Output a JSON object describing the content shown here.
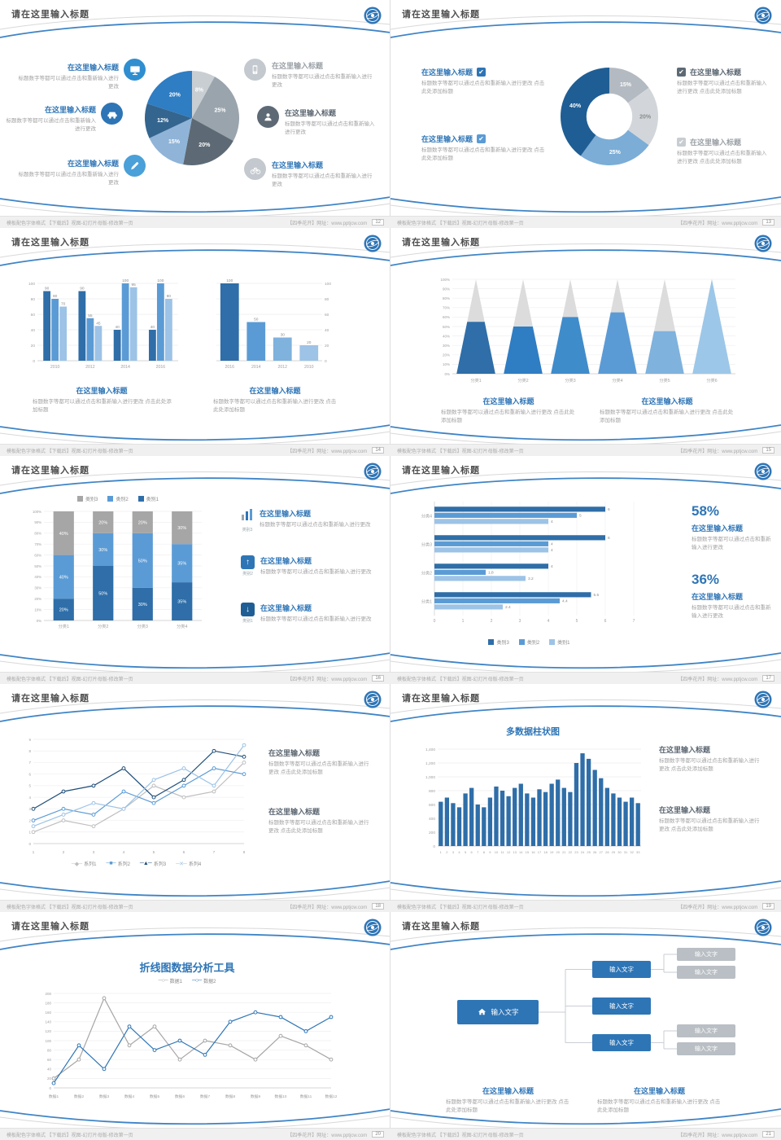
{
  "page": {
    "title": "请在这里输入标题",
    "footer_left": "模板配色字体格式 【下载后】视图-幻灯片母版-修改第一页",
    "footer_right": "【四季花开】网址：www.pptjcw.com"
  },
  "text": {
    "item_title": "在这里输入标题",
    "body": "标题数字等都可以通过点击和重新输入进行更改",
    "body_long": "标题数字等都可以通过点击和重新输入进行更改 点击此处添加标题"
  },
  "slides": [
    {
      "page_no": "12",
      "chart_data": {
        "type": "pie",
        "slices": [
          {
            "label": "8%",
            "value": 8,
            "color": "#c9ced3"
          },
          {
            "label": "25%",
            "value": 25,
            "color": "#9aa4ac"
          },
          {
            "label": "20%",
            "value": 20,
            "color": "#5d6a75"
          },
          {
            "label": "15%",
            "value": 15,
            "color": "#8fb4d8"
          },
          {
            "label": "12%",
            "value": 12,
            "color": "#33658f"
          },
          {
            "label": "20%",
            "value": 20,
            "color": "#2f7dc3"
          }
        ]
      }
    },
    {
      "page_no": "13",
      "chart_data": {
        "type": "donut",
        "slices": [
          {
            "label": "15%",
            "value": 15,
            "color": "#b3bac1"
          },
          {
            "label": "20%",
            "value": 20,
            "color": "#d2d6da",
            "lc": "#8a8a8a"
          },
          {
            "label": "25%",
            "value": 25,
            "color": "#7badd6"
          },
          {
            "label": "40%",
            "value": 40,
            "color": "#1f5e94"
          }
        ]
      }
    },
    {
      "page_no": "14",
      "chart_data": [
        {
          "type": "bar-grouped",
          "categories": [
            "2010",
            "2012",
            "2014",
            "2016"
          ],
          "ylim": [
            0,
            100
          ],
          "ystep": 20,
          "value_labels": true,
          "series": [
            {
              "color": "#2f6ea8",
              "values": [
                90,
                90,
                40,
                40
              ]
            },
            {
              "color": "#5b9bd5",
              "values": [
                80,
                55,
                100,
                100
              ]
            },
            {
              "color": "#9dc3e6",
              "values": [
                70,
                45,
                95,
                80
              ]
            }
          ]
        },
        {
          "type": "bar",
          "categories": [
            "2016",
            "2014",
            "2012",
            "2010"
          ],
          "ylim": [
            0,
            100
          ],
          "ystep": 20,
          "axis_right": true,
          "value_labels": true,
          "values": [
            100,
            50,
            30,
            20
          ],
          "colors": [
            "#2f6ea8",
            "#5b9bd5",
            "#7fb2dd",
            "#9dc3e6"
          ]
        }
      ]
    },
    {
      "page_no": "15",
      "chart_data": {
        "type": "pyramid",
        "categories": [
          "分类1",
          "分类2",
          "分类3",
          "分类4",
          "分类5",
          "分类6"
        ],
        "blue_fractions": [
          0.55,
          0.5,
          0.6,
          0.65,
          0.45,
          1
        ],
        "colors": [
          "#2f6ea8",
          "#2f7dc3",
          "#3f8ccb",
          "#5b9bd5",
          "#7fb2dd",
          "#9cc7e8"
        ],
        "top_color": "#dcdcdc",
        "ylim": [
          0,
          100
        ],
        "ystep": 10
      }
    },
    {
      "page_no": "16",
      "list_icons": [
        "类别3",
        "类别2",
        "类别1"
      ],
      "chart_data": {
        "type": "bar-stacked",
        "categories": [
          "分类1",
          "分类2",
          "分类3",
          "分类4"
        ],
        "ylim": [
          0,
          100
        ],
        "ystep": 10,
        "series": [
          {
            "name": "类别1",
            "color": "#2f6ea8",
            "values": [
              20,
              50,
              30,
              35
            ]
          },
          {
            "name": "类别2",
            "color": "#5b9bd5",
            "values": [
              40,
              30,
              50,
              35
            ]
          },
          {
            "name": "类别3",
            "color": "#a6a6a6",
            "values": [
              40,
              20,
              20,
              30
            ]
          }
        ],
        "legend": [
          {
            "label": "类别3",
            "color": "#a6a6a6"
          },
          {
            "label": "类别2",
            "color": "#5b9bd5"
          },
          {
            "label": "类别1",
            "color": "#2f6ea8"
          }
        ]
      }
    },
    {
      "page_no": "17",
      "stats": [
        {
          "value": "58%"
        },
        {
          "value": "36%"
        }
      ],
      "chart_data": {
        "type": "hbar",
        "categories": [
          "分类1",
          "分类2",
          "分类3",
          "分类4"
        ],
        "xlim": [
          0,
          7
        ],
        "series": [
          {
            "name": "类别3",
            "color": "#2f6ea8",
            "values": [
              5.5,
              4,
              6,
              6
            ]
          },
          {
            "name": "类别2",
            "color": "#5b9bd5",
            "values": [
              4.4,
              1.8,
              4,
              5
            ]
          },
          {
            "name": "类别1",
            "color": "#9dc3e6",
            "values": [
              2.4,
              3.2,
              4,
              4
            ]
          }
        ],
        "legend": [
          {
            "label": "类别3",
            "color": "#2f6ea8"
          },
          {
            "label": "类别2",
            "color": "#5b9bd5"
          },
          {
            "label": "类别1",
            "color": "#9dc3e6"
          }
        ]
      }
    },
    {
      "page_no": "18",
      "chart_data": {
        "type": "line",
        "x": [
          "1",
          "2",
          "3",
          "4",
          "5",
          "6",
          "7",
          "8"
        ],
        "ylim": [
          0,
          9
        ],
        "ystep": 1,
        "markers": true,
        "series": [
          {
            "color": "#bfbfbf",
            "values": [
              1,
              2,
              1.5,
              3,
              5,
              4,
              4.5,
              7
            ]
          },
          {
            "color": "#5b9bd5",
            "values": [
              2,
              3,
              2.5,
              4.5,
              3.5,
              5,
              6.5,
              6
            ]
          },
          {
            "color": "#1f4e79",
            "values": [
              3,
              4.5,
              5,
              6.5,
              4,
              5.5,
              8,
              7.5
            ]
          },
          {
            "color": "#9dc3e6",
            "values": [
              1.5,
              2.5,
              3.5,
              3,
              5.5,
              6.5,
              5,
              8.5
            ]
          }
        ],
        "legend": [
          {
            "label": "系列1",
            "color": "#bfbfbf"
          },
          {
            "label": "系列2",
            "color": "#5b9bd5"
          },
          {
            "label": "系列3",
            "color": "#1f4e79"
          },
          {
            "label": "系列4",
            "color": "#9dc3e6"
          }
        ]
      }
    },
    {
      "page_no": "19",
      "chart_data": {
        "type": "column",
        "title": "多数据柱状图",
        "ylim": [
          0,
          1400
        ],
        "ystep": 200,
        "color": "#2f6ea8",
        "categories": [
          "1",
          "2",
          "3",
          "4",
          "5",
          "6",
          "7",
          "8",
          "9",
          "10",
          "11",
          "12",
          "13",
          "14",
          "15",
          "16",
          "17",
          "18",
          "19",
          "20",
          "21",
          "22",
          "23",
          "24",
          "25",
          "26",
          "27",
          "28",
          "29",
          "30",
          "31",
          "32",
          "33"
        ],
        "values": [
          640,
          700,
          620,
          560,
          760,
          840,
          600,
          560,
          700,
          860,
          800,
          720,
          840,
          900,
          760,
          700,
          820,
          780,
          900,
          960,
          840,
          780,
          1200,
          1340,
          1260,
          1100,
          980,
          840,
          760,
          700,
          640,
          700,
          620
        ]
      }
    },
    {
      "page_no": "20",
      "chart_data": {
        "type": "line",
        "title": "折线图数据分析工具",
        "ylim": [
          0,
          200
        ],
        "ystep": 20,
        "markers": true,
        "x": [
          "数据1",
          "数据2",
          "数据3",
          "数据4",
          "数据5",
          "数据6",
          "数据7",
          "数据8",
          "数据9",
          "数据10",
          "数据11",
          "数据12"
        ],
        "series": [
          {
            "color": "#a6a6a6",
            "values": [
              20,
              60,
              190,
              90,
              130,
              60,
              100,
              90,
              60,
              110,
              90,
              60
            ]
          },
          {
            "color": "#2e75b6",
            "values": [
              10,
              90,
              40,
              130,
              80,
              100,
              70,
              140,
              160,
              150,
              120,
              150
            ]
          }
        ],
        "legend": [
          {
            "label": "数据1",
            "color": "#a6a6a6"
          },
          {
            "label": "数据2",
            "color": "#2e75b6"
          }
        ]
      }
    },
    {
      "page_no": "21",
      "chart_data": {
        "type": "diagram",
        "root": "输入文字",
        "children": [
          "输入文字",
          "输入文字",
          "输入文字"
        ],
        "leaves": [
          "输入文字",
          "输入文字",
          "输入文字",
          "输入文字"
        ]
      }
    }
  ]
}
